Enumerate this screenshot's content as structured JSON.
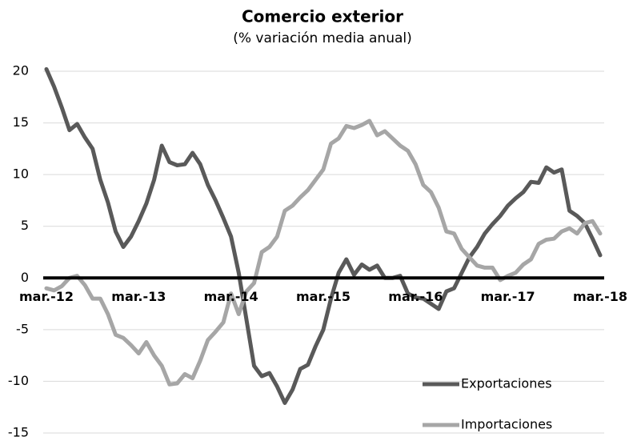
{
  "chart_data": {
    "type": "line",
    "title": "Comercio exterior",
    "subtitle": "(% variación media anual)",
    "categories": [
      "mar.-12",
      null,
      null,
      null,
      null,
      null,
      null,
      null,
      null,
      null,
      null,
      null,
      "mar.-13",
      null,
      null,
      null,
      null,
      null,
      null,
      null,
      null,
      null,
      null,
      null,
      "mar.-14",
      null,
      null,
      null,
      null,
      null,
      null,
      null,
      null,
      null,
      null,
      null,
      "mar.-15",
      null,
      null,
      null,
      null,
      null,
      null,
      null,
      null,
      null,
      null,
      null,
      "mar.-16",
      null,
      null,
      null,
      null,
      null,
      null,
      null,
      null,
      null,
      null,
      null,
      "mar.-17",
      null,
      null,
      null,
      null,
      null,
      null,
      null,
      null,
      null,
      null,
      null,
      "mar.-18"
    ],
    "series": [
      {
        "name": "Exportaciones",
        "color": "#595959",
        "values": [
          20.2,
          18.5,
          16.5,
          14.3,
          14.9,
          13.6,
          12.5,
          9.5,
          7.3,
          4.5,
          3.0,
          4.0,
          5.5,
          7.2,
          9.5,
          12.8,
          11.2,
          10.9,
          11.0,
          12.1,
          11.0,
          9.0,
          7.5,
          5.8,
          4.0,
          0.5,
          -4.0,
          -8.5,
          -9.5,
          -9.2,
          -10.5,
          -12.1,
          -10.8,
          -8.8,
          -8.4,
          -6.6,
          -5.0,
          -2.0,
          0.5,
          1.8,
          0.3,
          1.3,
          0.8,
          1.2,
          0.0,
          0.0,
          0.2,
          -1.5,
          -1.9,
          -2.0,
          -2.5,
          -3.0,
          -1.3,
          -1.0,
          0.5,
          2.0,
          3.0,
          4.3,
          5.2,
          6.0,
          7.0,
          7.7,
          8.3,
          9.3,
          9.2,
          10.7,
          10.2,
          10.5,
          6.5,
          6.0,
          5.3,
          3.8,
          2.2
        ]
      },
      {
        "name": "Importaciones",
        "color": "#a6a6a6",
        "values": [
          -1.0,
          -1.2,
          -0.8,
          0.0,
          0.2,
          -0.7,
          -2.0,
          -2.0,
          -3.5,
          -5.5,
          -5.8,
          -6.5,
          -7.3,
          -6.2,
          -7.5,
          -8.5,
          -10.3,
          -10.2,
          -9.3,
          -9.7,
          -8.0,
          -6.0,
          -5.2,
          -4.3,
          -1.5,
          -3.5,
          -1.3,
          -0.5,
          2.5,
          3.0,
          4.0,
          6.5,
          7.0,
          7.8,
          8.5,
          9.5,
          10.5,
          13.0,
          13.5,
          14.7,
          14.5,
          14.8,
          15.2,
          13.8,
          14.2,
          13.5,
          12.8,
          12.3,
          11.0,
          9.0,
          8.3,
          6.8,
          4.5,
          4.3,
          2.8,
          2.0,
          1.2,
          1.0,
          1.0,
          -0.2,
          0.2,
          0.5,
          1.3,
          1.8,
          3.3,
          3.7,
          3.8,
          4.5,
          4.8,
          4.3,
          5.3,
          5.5,
          4.3
        ]
      }
    ],
    "ylim": [
      -15,
      20
    ],
    "yticks": [
      -15,
      -10,
      -5,
      0,
      5,
      10,
      15,
      20
    ],
    "grid": true,
    "legend": "lower right"
  }
}
